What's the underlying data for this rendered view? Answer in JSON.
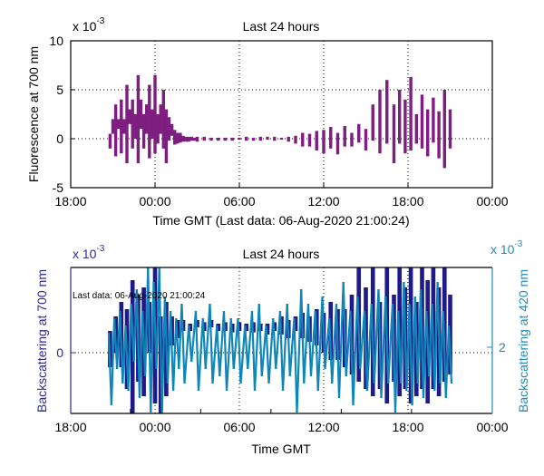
{
  "chart_data": [
    {
      "type": "line",
      "title": "Last 24 hours",
      "xlabel": "Time GMT (Last data: 06-Aug-2020 21:00:24)",
      "ylabel": "Fluorescence at 700 nm",
      "y_exponent_label": "x 10",
      "y_exponent": "-3",
      "ylim": [
        -5,
        10
      ],
      "yticks": [
        -5,
        0,
        5,
        10
      ],
      "ytick_labels": [
        "-5",
        "0",
        "5",
        "10"
      ],
      "xlim_hours": [
        0,
        30
      ],
      "xticks_hours": [
        0,
        6,
        12,
        18,
        24,
        30
      ],
      "xtick_labels": [
        "18:00",
        "00:00",
        "06:00",
        "12:00",
        "18:00",
        "00:00"
      ],
      "grid": true,
      "color": "#7e1e80",
      "series": [
        {
          "name": "Fluorescence at 700 nm",
          "x_hours": [
            2.8,
            3.0,
            3.2,
            3.4,
            3.6,
            3.8,
            4.0,
            4.2,
            4.4,
            4.6,
            4.8,
            5.0,
            5.2,
            5.4,
            5.6,
            5.8,
            6.0,
            6.2,
            6.4,
            6.6,
            6.8,
            7.0,
            7.2,
            7.4,
            7.6,
            7.8,
            8.0,
            8.2,
            8.4,
            8.6,
            8.8,
            9.0,
            9.5,
            10,
            10.5,
            11,
            11.5,
            12,
            12.5,
            13,
            13.5,
            14,
            14.5,
            15,
            15.5,
            16,
            16.5,
            17,
            17.5,
            18,
            18.5,
            19,
            19.5,
            20,
            20.5,
            21,
            21.5,
            22,
            22.5,
            23,
            23.4,
            23.8,
            24.2,
            24.6,
            25.0,
            25.4,
            25.8,
            26.2,
            26.6,
            27.0
          ],
          "low": [
            -1.0,
            0.5,
            -1.8,
            1.0,
            -1.5,
            0.5,
            -2.5,
            1.5,
            -1.0,
            0.0,
            -2.5,
            1.0,
            -1.0,
            0.5,
            -2.0,
            0.0,
            -1.5,
            -0.5,
            0.5,
            -1.0,
            -2.5,
            -0.2,
            0.3,
            -0.6,
            -0.5,
            -0.4,
            -0.3,
            -0.3,
            -0.3,
            -0.2,
            -0.2,
            -0.3,
            -0.2,
            -0.2,
            -0.2,
            -0.2,
            -0.2,
            -0.1,
            -0.2,
            -0.2,
            -0.2,
            -0.1,
            -0.2,
            -0.1,
            -0.3,
            -0.5,
            -0.8,
            -0.8,
            -1.2,
            -1.5,
            -1.0,
            -1.6,
            -0.8,
            -0.8,
            -0.4,
            -1.2,
            -0.2,
            -1.5,
            -0.5,
            -2.5,
            -0.5,
            -1.5,
            -1.2,
            -0.5,
            -1.0,
            -1.8,
            -0.4,
            -2.0,
            -3.0,
            -1.0
          ],
          "high": [
            0.5,
            2.0,
            3.5,
            2.0,
            4.0,
            2.0,
            5.5,
            3.0,
            4.0,
            2.5,
            6.5,
            4.0,
            2.5,
            3.5,
            5.5,
            3.0,
            6.5,
            2.5,
            3.5,
            5.0,
            3.0,
            2.2,
            1.5,
            0.9,
            0.6,
            0.6,
            0.3,
            0.2,
            0.2,
            0.2,
            0.1,
            0.2,
            0.2,
            0.1,
            0.1,
            0.1,
            0.1,
            0.1,
            0.2,
            0.1,
            0.2,
            0.2,
            0.2,
            0.1,
            0.2,
            0.3,
            0.6,
            0.5,
            0.8,
            0.9,
            1.2,
            0.6,
            1.3,
            0.6,
            1.5,
            1.0,
            3.5,
            5.0,
            6.0,
            3.5,
            5.0,
            4.0,
            6.3,
            2.5,
            4.5,
            3.0,
            4.2,
            2.8,
            5.0,
            3.0
          ]
        }
      ]
    },
    {
      "type": "line",
      "title": "Last 24 hours",
      "xlabel": "Time GMT",
      "ylabel_left": "Backscattering at 700 nm",
      "ylabel_right": "Backscattering at 420 nm",
      "y_exponent_label_left": "x 10",
      "y_exponent_left": "-3",
      "y_exponent_label_right": "x 10",
      "y_exponent_right": "-3",
      "ytick_left": "0",
      "ytick_right": "2",
      "xlim_hours": [
        0,
        30
      ],
      "xticks_hours": [
        0,
        6,
        12,
        18,
        24,
        30
      ],
      "xtick_labels": [
        "18:00",
        "00:00",
        "06:00",
        "12:00",
        "18:00",
        "00:00"
      ],
      "grid": true,
      "annotation": "Last data: 06-Aug-2020 21:00:24",
      "colors": {
        "left_series": "#1f1a8a",
        "right_series": "#0e86b8",
        "left_axis": "#2b2b8f",
        "right_axis": "#1c8db8"
      },
      "series": [
        {
          "name": "Backscattering at 700 nm",
          "axis": "left",
          "rel_ylim": [
            -1,
            1
          ],
          "x_hours": [
            2.8,
            3.2,
            3.6,
            4.0,
            4.4,
            4.8,
            5.2,
            5.6,
            6.0,
            6.4,
            6.8,
            7.2,
            7.6,
            8.0,
            8.5,
            9,
            9.5,
            10,
            10.5,
            11,
            11.5,
            12,
            12.5,
            13,
            13.5,
            14,
            14.5,
            15,
            15.5,
            16,
            16.5,
            17,
            17.5,
            18,
            18.5,
            19,
            19.5,
            20,
            20.5,
            21,
            21.5,
            22,
            22.5,
            23,
            23.4,
            23.8,
            24.2,
            24.6,
            25.0,
            25.4,
            25.8,
            26.2,
            26.6,
            27.0
          ],
          "low": [
            -0.2,
            0.0,
            -0.2,
            -0.5,
            -0.9,
            -0.4,
            -0.6,
            0.0,
            -0.7,
            -1.0,
            -0.6,
            0.1,
            0.2,
            0.3,
            0.3,
            0.35,
            0.3,
            0.35,
            0.3,
            0.3,
            0.28,
            0.3,
            0.3,
            0.28,
            0.3,
            0.25,
            0.3,
            0.25,
            0.2,
            0.3,
            0.2,
            0.15,
            0.1,
            0.0,
            -0.1,
            -0.1,
            -0.2,
            -0.3,
            -0.4,
            -0.5,
            -0.6,
            -0.5,
            -0.7,
            -0.4,
            -0.6,
            -0.5,
            -0.7,
            -0.6,
            -0.5,
            -0.7,
            -0.5,
            -0.6,
            -0.4,
            -0.3
          ],
          "high": [
            0.3,
            0.5,
            0.7,
            0.6,
            1.0,
            0.8,
            0.9,
            0.7,
            1.2,
            0.5,
            0.7,
            0.5,
            0.45,
            0.45,
            0.4,
            0.45,
            0.42,
            0.45,
            0.4,
            0.42,
            0.4,
            0.42,
            0.4,
            0.42,
            0.4,
            0.4,
            0.42,
            0.5,
            0.45,
            0.5,
            0.55,
            0.5,
            0.6,
            0.55,
            0.7,
            0.6,
            0.6,
            0.8,
            1.2,
            0.9,
            1.5,
            0.7,
            1.4,
            0.8,
            1.6,
            0.9,
            1.3,
            0.7,
            1.6,
            1.0,
            1.9,
            0.9,
            1.3,
            0.8
          ]
        },
        {
          "name": "Backscattering at 420 nm",
          "axis": "right",
          "rel_ylim": [
            -1,
            1
          ],
          "x_hours": [
            2.8,
            3.2,
            3.6,
            4.0,
            4.4,
            4.8,
            5.2,
            5.6,
            6.0,
            6.4,
            6.8,
            7.2,
            7.6,
            8.0,
            8.5,
            9,
            9.5,
            10,
            10.5,
            11,
            11.5,
            12,
            12.5,
            13,
            13.5,
            14,
            14.5,
            15,
            15.5,
            16,
            16.5,
            17,
            17.5,
            18,
            18.5,
            19,
            19.5,
            20,
            20.5,
            21,
            21.5,
            22,
            22.5,
            23,
            23.4,
            23.8,
            24.2,
            24.6,
            25.0,
            25.4,
            25.8,
            26.2,
            26.6,
            27.0
          ],
          "low": [
            -0.8,
            -0.3,
            -0.5,
            -0.6,
            -0.2,
            -0.7,
            -0.4,
            -0.9,
            -0.3,
            -1.2,
            -0.5,
            -0.6,
            -0.3,
            -0.5,
            -0.2,
            -0.6,
            -0.3,
            -0.5,
            -0.4,
            -0.6,
            -0.3,
            -0.5,
            -0.3,
            -0.6,
            -0.4,
            -0.5,
            -0.3,
            -0.6,
            -0.4,
            -0.9,
            -0.5,
            -0.4,
            -0.6,
            -0.3,
            -0.5,
            -0.7,
            -0.4,
            -0.8,
            -0.3,
            -0.6,
            -0.5,
            -0.7,
            -0.5,
            -0.9,
            -0.5,
            -0.6,
            -0.8,
            -0.5,
            -0.7,
            -0.4,
            -0.6,
            -0.5,
            -0.7,
            -0.5
          ],
          "high": [
            0.2,
            0.4,
            0.5,
            0.3,
            0.6,
            0.8,
            0.5,
            1.1,
            0.9,
            1.3,
            0.7,
            0.5,
            0.4,
            0.6,
            0.3,
            0.5,
            0.4,
            0.6,
            0.3,
            0.5,
            0.4,
            0.4,
            0.3,
            0.5,
            0.6,
            0.3,
            0.4,
            0.5,
            0.6,
            0.4,
            0.8,
            0.6,
            0.5,
            0.7,
            0.4,
            0.6,
            0.9,
            0.5,
            0.7,
            0.5,
            0.6,
            0.8,
            0.7,
            0.6,
            0.5,
            0.9,
            0.6,
            0.7,
            0.8,
            0.5,
            0.6,
            0.9,
            0.5,
            0.3
          ]
        }
      ]
    }
  ]
}
